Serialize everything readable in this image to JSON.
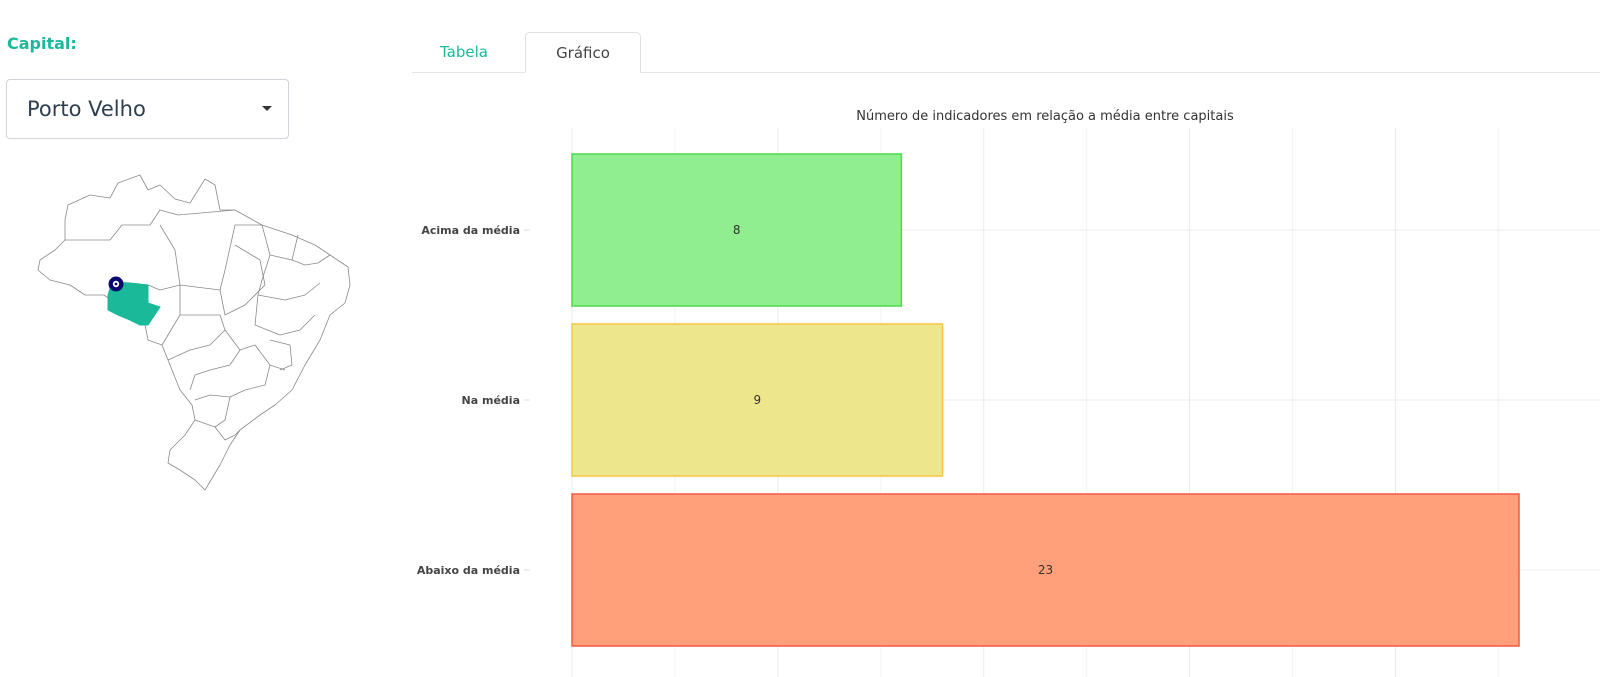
{
  "sidebar": {
    "capital_label": "Capital:",
    "capital_value": "Porto Velho",
    "map": {
      "highlight_color": "#1ab99a",
      "marker_color": "#0a0a6e",
      "outline_color": "#8a8a8a"
    }
  },
  "tabs": [
    {
      "label": "Tabela",
      "active": false
    },
    {
      "label": "Gráfico",
      "active": true
    }
  ],
  "chart_data": {
    "type": "bar",
    "orientation": "horizontal",
    "title": "Número de indicadores em relação a média entre capitais",
    "categories": [
      "Acima da média",
      "Na média",
      "Abaixo da média"
    ],
    "values": [
      8,
      9,
      23
    ],
    "colors": {
      "fill": [
        "#90ee90",
        "#eee68c",
        "#ffa07a"
      ],
      "stroke": [
        "#4cd94c",
        "#f5c542",
        "#ef5a44"
      ]
    },
    "xlim": [
      0,
      24
    ],
    "grid": true,
    "legend": "none"
  }
}
